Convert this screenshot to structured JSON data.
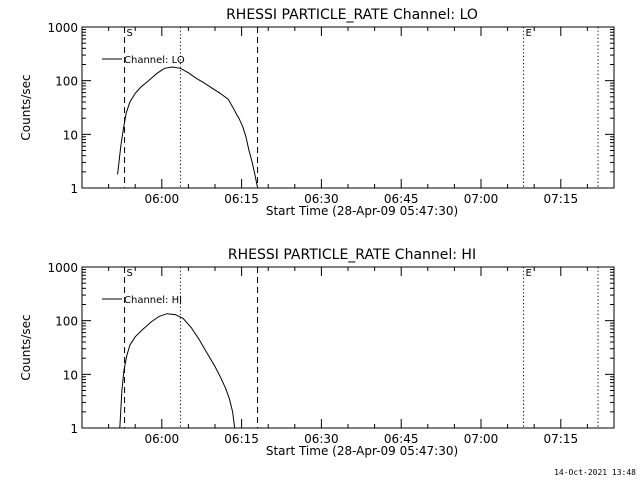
{
  "footer": {
    "timestamp": "14-Oct-2021 13:48"
  },
  "chart_data": [
    {
      "type": "line",
      "title": "RHESSI PARTICLE_RATE Channel: LO",
      "xlabel": "Start Time (28-Apr-09 05:47:30)",
      "ylabel": "Counts/sec",
      "yscale": "log",
      "ylim": [
        1,
        1000
      ],
      "xlim_minutes": [
        -2.5,
        97.5
      ],
      "xtick_labels": [
        "06:00",
        "06:15",
        "06:30",
        "06:45",
        "07:00",
        "07:15"
      ],
      "xtick_minutes": [
        12.5,
        27.5,
        42.5,
        57.5,
        72.5,
        87.5
      ],
      "ytick_labels": [
        "1",
        "10",
        "100",
        "1000"
      ],
      "ytick_values": [
        1,
        10,
        100,
        1000
      ],
      "legend": {
        "label": "Channel: LO",
        "placement": "top-left"
      },
      "markers": [
        {
          "label": "S",
          "minute": 5.5,
          "style": "dashed"
        },
        {
          "label": "",
          "minute": 30.5,
          "style": "dashed"
        },
        {
          "label": "",
          "minute": 16.0,
          "style": "dotted"
        },
        {
          "label": "E",
          "minute": 80.5,
          "style": "dotted"
        },
        {
          "label": "",
          "minute": 94.5,
          "style": "dotted"
        }
      ],
      "series": [
        {
          "name": "Channel: LO",
          "x": [
            4.2,
            4.8,
            5.3,
            5.8,
            6.5,
            7.5,
            8.5,
            10,
            11.5,
            13,
            14.5,
            16,
            17.5,
            19,
            20.5,
            22,
            23.5,
            25,
            26,
            26.5,
            27,
            27.7,
            28.3,
            28.9,
            29.5,
            30.1,
            30.5
          ],
          "y": [
            1.8,
            6,
            13,
            25,
            40,
            58,
            75,
            100,
            135,
            170,
            180,
            170,
            140,
            110,
            90,
            72,
            58,
            45,
            30,
            24,
            20,
            14,
            9,
            5,
            3,
            1.6,
            1
          ]
        }
      ]
    },
    {
      "type": "line",
      "title": "RHESSI PARTICLE_RATE Channel: HI",
      "xlabel": "Start Time (28-Apr-09 05:47:30)",
      "ylabel": "Counts/sec",
      "yscale": "log",
      "ylim": [
        1,
        1000
      ],
      "xlim_minutes": [
        -2.5,
        97.5
      ],
      "xtick_labels": [
        "06:00",
        "06:15",
        "06:30",
        "06:45",
        "07:00",
        "07:15"
      ],
      "xtick_minutes": [
        12.5,
        27.5,
        42.5,
        57.5,
        72.5,
        87.5
      ],
      "ytick_labels": [
        "1",
        "10",
        "100",
        "1000"
      ],
      "ytick_values": [
        1,
        10,
        100,
        1000
      ],
      "legend": {
        "label": "Channel: HI",
        "placement": "top-left"
      },
      "markers": [
        {
          "label": "S",
          "minute": 5.5,
          "style": "dashed"
        },
        {
          "label": "",
          "minute": 30.5,
          "style": "dashed"
        },
        {
          "label": "",
          "minute": 16.0,
          "style": "dotted"
        },
        {
          "label": "E",
          "minute": 80.5,
          "style": "dotted"
        },
        {
          "label": "",
          "minute": 94.5,
          "style": "dotted"
        }
      ],
      "series": [
        {
          "name": "Channel: HI",
          "x": [
            4.6,
            5.0,
            5.4,
            5.9,
            6.5,
            7.5,
            9,
            10.5,
            12,
            13.5,
            15,
            16.5,
            18,
            19.5,
            21,
            22.5,
            23.5,
            24.5,
            25.2,
            25.8,
            26.2
          ],
          "y": [
            1,
            5,
            12,
            22,
            35,
            50,
            70,
            95,
            120,
            135,
            130,
            110,
            75,
            45,
            25,
            14,
            9,
            5.5,
            3.5,
            2,
            1
          ]
        }
      ]
    }
  ]
}
